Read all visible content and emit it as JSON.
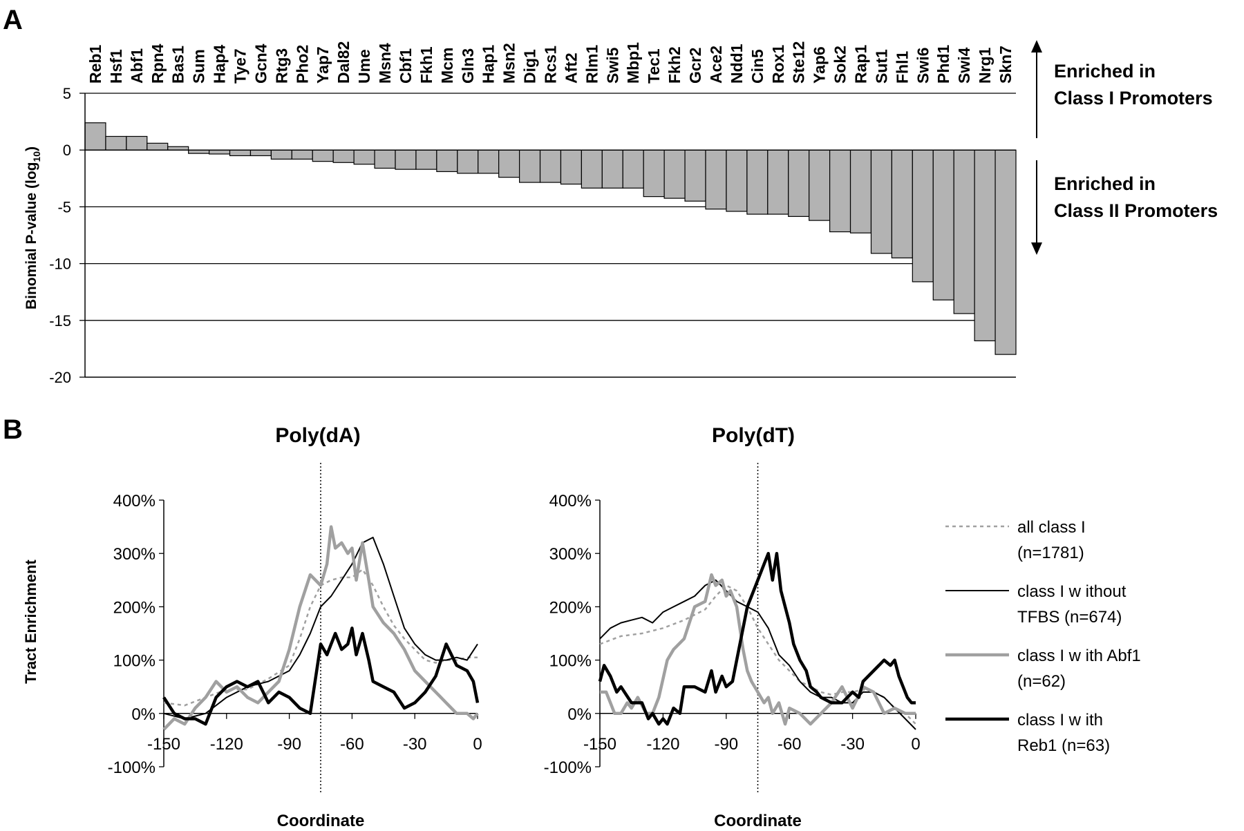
{
  "chart_data": [
    {
      "panel": "A",
      "type": "bar",
      "ylabel": "Binomial P-value (log",
      "ylabel_sub": "10",
      "ylabel_close": ")",
      "ylim": [
        -20,
        5
      ],
      "yticks": [
        5,
        0,
        -5,
        -10,
        -15,
        -20
      ],
      "grid": true,
      "categories": [
        "Reb1",
        "Hsf1",
        "Abf1",
        "Rpn4",
        "Bas1",
        "Sum",
        "Hap4",
        "Tye7",
        "Gcn4",
        "Rtg3",
        "Pho2",
        "Yap7",
        "Dal82",
        "Ume",
        "Msn4",
        "Cbf1",
        "Fkh1",
        "Mcm",
        "Gln3",
        "Hap1",
        "Msn2",
        "Dig1",
        "Rcs1",
        "Aft2",
        "Rlm1",
        "Swi5",
        "Mbp1",
        "Tec1",
        "Fkh2",
        "Gcr2",
        "Ace2",
        "Ndd1",
        "Cin5",
        "Rox1",
        "Ste12",
        "Yap6",
        "Sok2",
        "Rap1",
        "Sut1",
        "Fhl1",
        "Swi6",
        "Phd1",
        "Swi4",
        "Nrg1",
        "Skn7"
      ],
      "values": [
        2.4,
        1.2,
        1.2,
        0.6,
        0.3,
        -0.3,
        -0.35,
        -0.5,
        -0.5,
        -0.8,
        -0.8,
        -1.0,
        -1.1,
        -1.25,
        -1.6,
        -1.7,
        -1.7,
        -1.9,
        -2.05,
        -2.05,
        -2.4,
        -2.85,
        -2.85,
        -3.0,
        -3.35,
        -3.35,
        -3.35,
        -4.1,
        -4.25,
        -4.5,
        -5.2,
        -5.4,
        -5.65,
        -5.65,
        -5.85,
        -6.2,
        -7.2,
        -7.3,
        -9.1,
        -9.5,
        -11.6,
        -13.2,
        -14.4,
        -16.8,
        -18.0
      ],
      "annotations": {
        "up_line1": "Enriched in",
        "up_line2": "Class I Promoters",
        "down_line1": "Enriched in",
        "down_line2": "Class II Promoters"
      }
    },
    {
      "panel": "B",
      "type": "line",
      "ylabel": "Tract Enrichment",
      "xlabel": "Coordinate",
      "xlim": [
        -150,
        0
      ],
      "ylim": [
        -100,
        400
      ],
      "xticks": [
        -150,
        -120,
        -90,
        -60,
        -30,
        0
      ],
      "ytick_labels": [
        "400%",
        "300%",
        "200%",
        "100%",
        "0%",
        "-100%"
      ],
      "ytick_values": [
        400,
        300,
        200,
        100,
        0,
        -100
      ],
      "reference_x": -75,
      "subplots": [
        {
          "title": "Poly(dA)",
          "series": [
            {
              "name": "all class I (n=1781)",
              "x": [
                -150,
                -140,
                -130,
                -120,
                -110,
                -100,
                -90,
                -85,
                -80,
                -75,
                -70,
                -65,
                -60,
                -55,
                -50,
                -45,
                -40,
                -35,
                -30,
                -25,
                -20,
                -15,
                -10,
                -5,
                0
              ],
              "y": [
                20,
                15,
                30,
                45,
                45,
                65,
                90,
                140,
                200,
                240,
                250,
                255,
                255,
                270,
                240,
                200,
                165,
                140,
                120,
                100,
                95,
                100,
                100,
                105,
                105
              ]
            },
            {
              "name": "class I without TFBS (n=674)",
              "x": [
                -150,
                -140,
                -130,
                -120,
                -110,
                -100,
                -90,
                -85,
                -80,
                -75,
                -70,
                -65,
                -60,
                -55,
                -50,
                -45,
                -40,
                -35,
                -30,
                -25,
                -20,
                -15,
                -10,
                -5,
                0
              ],
              "y": [
                0,
                -10,
                0,
                30,
                50,
                60,
                80,
                110,
                150,
                200,
                220,
                250,
                280,
                320,
                330,
                280,
                220,
                160,
                130,
                110,
                100,
                100,
                105,
                100,
                130
              ]
            },
            {
              "name": "class I with Abf1 (n=62)",
              "x": [
                -150,
                -145,
                -140,
                -135,
                -130,
                -125,
                -120,
                -115,
                -110,
                -105,
                -100,
                -95,
                -90,
                -85,
                -80,
                -75,
                -72,
                -70,
                -68,
                -65,
                -62,
                -60,
                -58,
                -55,
                -52,
                -50,
                -45,
                -40,
                -35,
                -30,
                -25,
                -20,
                -15,
                -10,
                -5,
                -2,
                0
              ],
              "y": [
                -30,
                -10,
                -20,
                10,
                30,
                60,
                40,
                50,
                30,
                20,
                40,
                60,
                120,
                200,
                260,
                240,
                280,
                350,
                310,
                320,
                300,
                310,
                250,
                320,
                250,
                200,
                170,
                150,
                120,
                80,
                60,
                40,
                20,
                0,
                0,
                -10,
                0
              ]
            },
            {
              "name": "class I with Reb1 (n=63)",
              "x": [
                -150,
                -145,
                -140,
                -135,
                -130,
                -125,
                -120,
                -115,
                -110,
                -105,
                -100,
                -95,
                -90,
                -85,
                -80,
                -75,
                -72,
                -70,
                -68,
                -65,
                -62,
                -60,
                -58,
                -55,
                -52,
                -50,
                -45,
                -40,
                -35,
                -30,
                -25,
                -20,
                -15,
                -10,
                -5,
                -2,
                0
              ],
              "y": [
                30,
                0,
                -10,
                -10,
                -20,
                30,
                50,
                60,
                50,
                60,
                20,
                40,
                30,
                10,
                0,
                130,
                110,
                130,
                150,
                120,
                130,
                160,
                110,
                150,
                100,
                60,
                50,
                40,
                10,
                20,
                40,
                70,
                130,
                90,
                80,
                60,
                20
              ]
            }
          ]
        },
        {
          "title": "Poly(dT)",
          "series": [
            {
              "name": "all class I (n=1781)",
              "x": [
                -150,
                -140,
                -130,
                -120,
                -110,
                -100,
                -95,
                -90,
                -85,
                -80,
                -75,
                -70,
                -65,
                -60,
                -55,
                -50,
                -45,
                -40,
                -35,
                -30,
                -25,
                -20,
                -15,
                -10,
                -5,
                0
              ],
              "y": [
                130,
                145,
                150,
                160,
                175,
                195,
                220,
                240,
                230,
                200,
                160,
                130,
                100,
                80,
                60,
                50,
                40,
                35,
                40,
                40,
                45,
                40,
                30,
                10,
                0,
                -20
              ]
            },
            {
              "name": "class I without TFBS (n=674)",
              "x": [
                -150,
                -145,
                -140,
                -135,
                -130,
                -125,
                -120,
                -115,
                -110,
                -105,
                -100,
                -95,
                -90,
                -85,
                -80,
                -75,
                -70,
                -65,
                -60,
                -55,
                -50,
                -45,
                -40,
                -35,
                -30,
                -25,
                -20,
                -15,
                -10,
                -5,
                0
              ],
              "y": [
                140,
                160,
                170,
                175,
                180,
                170,
                190,
                200,
                210,
                220,
                240,
                250,
                230,
                210,
                200,
                190,
                160,
                110,
                90,
                60,
                40,
                30,
                30,
                20,
                20,
                40,
                40,
                30,
                10,
                -10,
                -30
              ]
            },
            {
              "name": "class I with Abf1 (n=62)",
              "x": [
                -150,
                -147,
                -143,
                -140,
                -137,
                -135,
                -132,
                -128,
                -125,
                -122,
                -118,
                -115,
                -110,
                -105,
                -100,
                -97,
                -95,
                -92,
                -90,
                -88,
                -85,
                -82,
                -80,
                -78,
                -75,
                -72,
                -70,
                -68,
                -65,
                -62,
                -60,
                -55,
                -50,
                -45,
                -40,
                -35,
                -30,
                -25,
                -20,
                -15,
                -10,
                -5,
                0
              ],
              "y": [
                40,
                40,
                0,
                0,
                20,
                10,
                30,
                0,
                0,
                30,
                100,
                120,
                140,
                200,
                210,
                260,
                240,
                250,
                220,
                230,
                200,
                120,
                80,
                60,
                40,
                20,
                30,
                0,
                20,
                -20,
                10,
                0,
                -20,
                0,
                20,
                50,
                10,
                50,
                40,
                0,
                10,
                0,
                0
              ]
            },
            {
              "name": "class I with Reb1 (n=63)",
              "x": [
                -150,
                -148,
                -145,
                -142,
                -140,
                -135,
                -130,
                -127,
                -125,
                -122,
                -120,
                -118,
                -115,
                -112,
                -110,
                -105,
                -100,
                -97,
                -95,
                -92,
                -90,
                -87,
                -85,
                -82,
                -80,
                -78,
                -75,
                -72,
                -70,
                -68,
                -66,
                -64,
                -62,
                -60,
                -58,
                -55,
                -52,
                -50,
                -47,
                -45,
                -40,
                -35,
                -30,
                -27,
                -25,
                -20,
                -15,
                -12,
                -10,
                -8,
                -6,
                -4,
                -2,
                0
              ],
              "y": [
                60,
                90,
                70,
                40,
                50,
                20,
                20,
                -10,
                0,
                -20,
                -10,
                -20,
                10,
                0,
                50,
                50,
                40,
                80,
                40,
                70,
                50,
                60,
                100,
                160,
                200,
                220,
                250,
                280,
                300,
                250,
                300,
                230,
                200,
                170,
                130,
                100,
                80,
                50,
                40,
                30,
                20,
                20,
                40,
                30,
                60,
                80,
                100,
                90,
                100,
                70,
                50,
                30,
                20,
                20
              ]
            }
          ]
        }
      ],
      "legend": [
        {
          "line1": "all class I",
          "line2": "(n=1781)"
        },
        {
          "line1": "class I w ithout",
          "line2": "TFBS (n=674)"
        },
        {
          "line1": "class I w ith Abf1",
          "line2": "(n=62)"
        },
        {
          "line1": "class I w ith",
          "line2": "Reb1 (n=63)"
        }
      ]
    }
  ],
  "panel_labels": {
    "a": "A",
    "b": "B"
  },
  "styles": {
    "bar_fill": "#b3b3b3",
    "all_class": "#a0a0a0",
    "without_tfbs": "#000000",
    "with_abf1": "#a0a0a0",
    "with_reb1": "#000000"
  }
}
